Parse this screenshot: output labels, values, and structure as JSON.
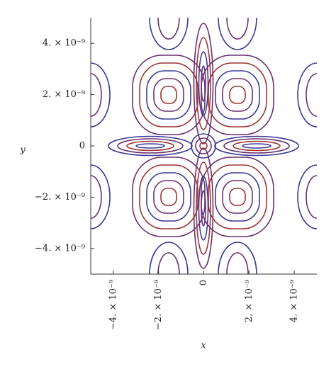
{
  "chart_data": {
    "type": "contour",
    "x_label": "x",
    "y_label": "y",
    "xlim": [
      -5e-09,
      5e-09
    ],
    "ylim": [
      -5e-09,
      5e-09
    ],
    "xticks": [
      {
        "value": -4e-09,
        "label": "−4. × 10⁻⁹"
      },
      {
        "value": -2e-09,
        "label": "−2. × 10⁻⁹"
      },
      0,
      {
        "value": 2e-09,
        "label": "2. × 10⁻⁹"
      },
      {
        "value": 4e-09,
        "label": "4. × 10⁻⁹"
      }
    ],
    "yticks": [
      {
        "value": -4e-09,
        "label": "−4. × 10⁻⁹"
      },
      {
        "value": -2e-09,
        "label": "−2. × 10⁻⁹"
      },
      0,
      {
        "value": 2e-09,
        "label": "2. × 10⁻⁹"
      },
      {
        "value": 4e-09,
        "label": "4. × 10⁻⁹"
      }
    ]
  }
}
